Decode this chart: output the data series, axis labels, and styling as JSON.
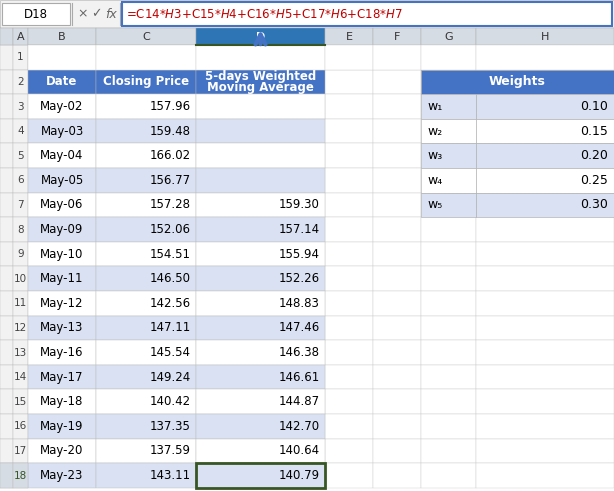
{
  "formula_bar_cell": "D18",
  "formula_bar_formula": "=C14*$H$3+C15*$H$4+C16*$H$5+C17*$H$6+C18*$H$7",
  "col_header_color": "#4472C4",
  "col_header_text_color": "#FFFFFF",
  "row_white": "#FFFFFF",
  "row_light": "#D9E1F2",
  "header_row_labels": [
    "Date",
    "Closing Price",
    "5-days Weighted\nMoving Average"
  ],
  "dates": [
    "May-02",
    "May-03",
    "May-04",
    "May-05",
    "May-06",
    "May-09",
    "May-10",
    "May-11",
    "May-12",
    "May-13",
    "May-16",
    "May-17",
    "May-18",
    "May-19",
    "May-20",
    "May-23"
  ],
  "closing_prices": [
    157.96,
    159.48,
    166.02,
    156.77,
    157.28,
    152.06,
    154.51,
    146.5,
    142.56,
    147.11,
    145.54,
    149.24,
    140.42,
    137.35,
    137.59,
    143.11
  ],
  "wma": [
    null,
    null,
    null,
    null,
    159.3,
    157.14,
    155.94,
    152.26,
    148.83,
    147.46,
    146.38,
    146.61,
    144.87,
    142.7,
    140.64,
    140.79
  ],
  "weights_header": "Weights",
  "weights_labels": [
    "w₁",
    "w₂",
    "w₃",
    "w₄",
    "w₅"
  ],
  "weights_values": [
    0.1,
    0.15,
    0.2,
    0.25,
    0.3
  ],
  "bg_color": "#FFFFFF",
  "excel_bg": "#F2F2F2",
  "col_header_bg": "#D6DCE4",
  "col_header_sel_bg": "#BDD7EE",
  "col_header_sel_text": "#1F5CA6",
  "selected_col_fill": "#BDD7EE",
  "selected_col_header_fill": "#2E75B6",
  "grid_color": "#C0C0C0",
  "cell_border": "#C8C8C8",
  "formula_border": "#4472C4",
  "green_border": "#375623",
  "arrow_color": "#4472C4"
}
